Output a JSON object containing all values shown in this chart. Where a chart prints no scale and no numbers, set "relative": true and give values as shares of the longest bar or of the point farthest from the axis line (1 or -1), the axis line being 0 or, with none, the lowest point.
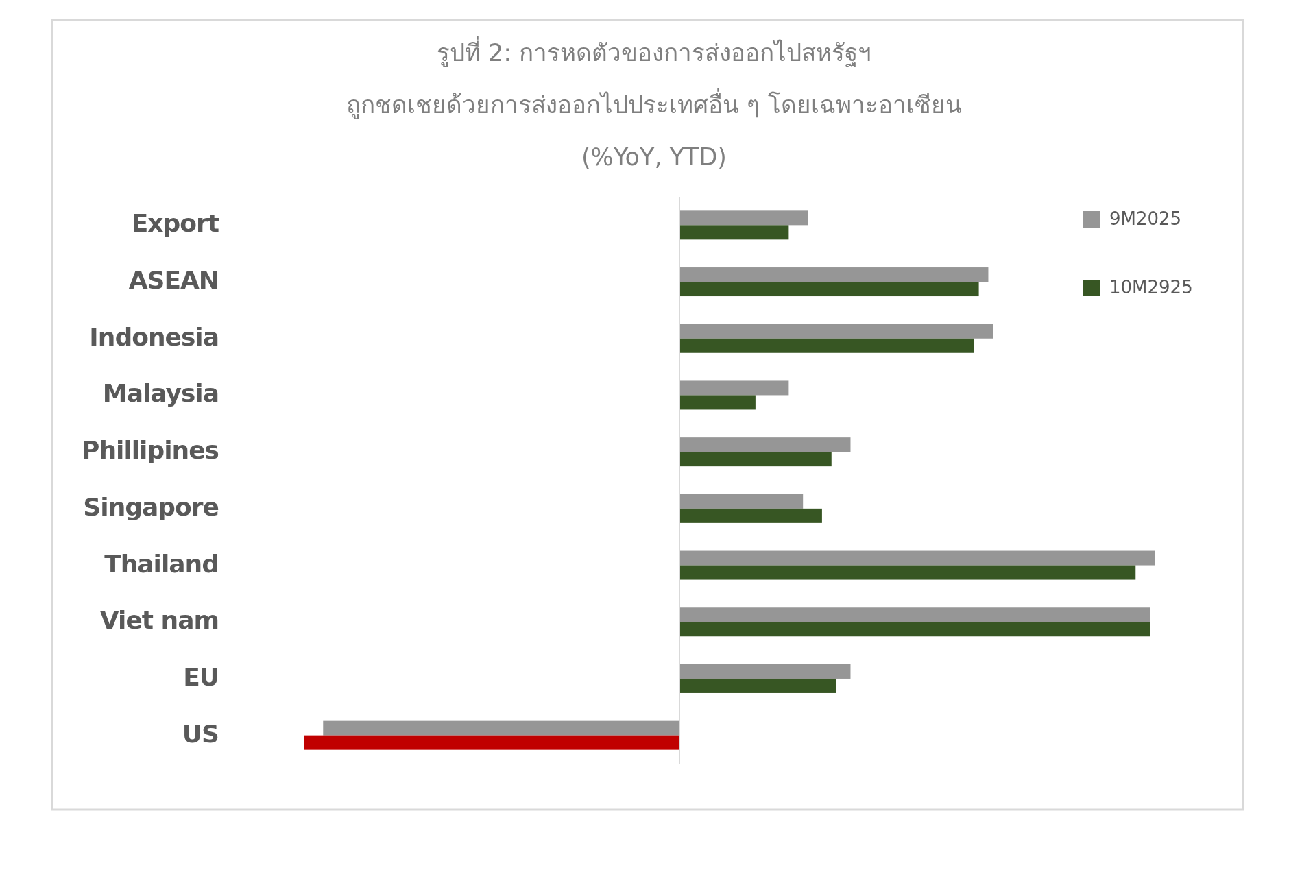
{
  "chart_data": {
    "type": "bar",
    "orientation": "horizontal",
    "relative": true,
    "legend": "top right",
    "title": "รูปที่ 2: การหดตัวของการส่งออกไปสหรัฐฯ\nถูกชดเชยด้วยการส่งออกไปประเทศอื่น ๆ โดยเฉพาะอาเซียน",
    "subtitle": "(%YoY, YTD)",
    "categories": [
      "Export",
      "ASEAN",
      "Indonesia",
      "Malaysia",
      "Phillipines",
      "Singapore",
      "Thailand",
      "Viet nam",
      "EU",
      "US"
    ],
    "series": [
      {
        "name": "9M2025",
        "color": "#969696",
        "values": [
          0.27,
          0.65,
          0.66,
          0.23,
          0.36,
          0.26,
          1,
          0.99,
          0.36,
          -0.75
        ]
      },
      {
        "name": "10M2925",
        "color": "#375623",
        "colors": [
          "#375623",
          "#375623",
          "#375623",
          "#375623",
          "#375623",
          "#375623",
          "#375623",
          "#375623",
          "#375623",
          "#c00000"
        ],
        "values": [
          0.23,
          0.63,
          0.62,
          0.16,
          0.32,
          0.3,
          0.96,
          0.99,
          0.33,
          -0.79
        ]
      }
    ]
  }
}
